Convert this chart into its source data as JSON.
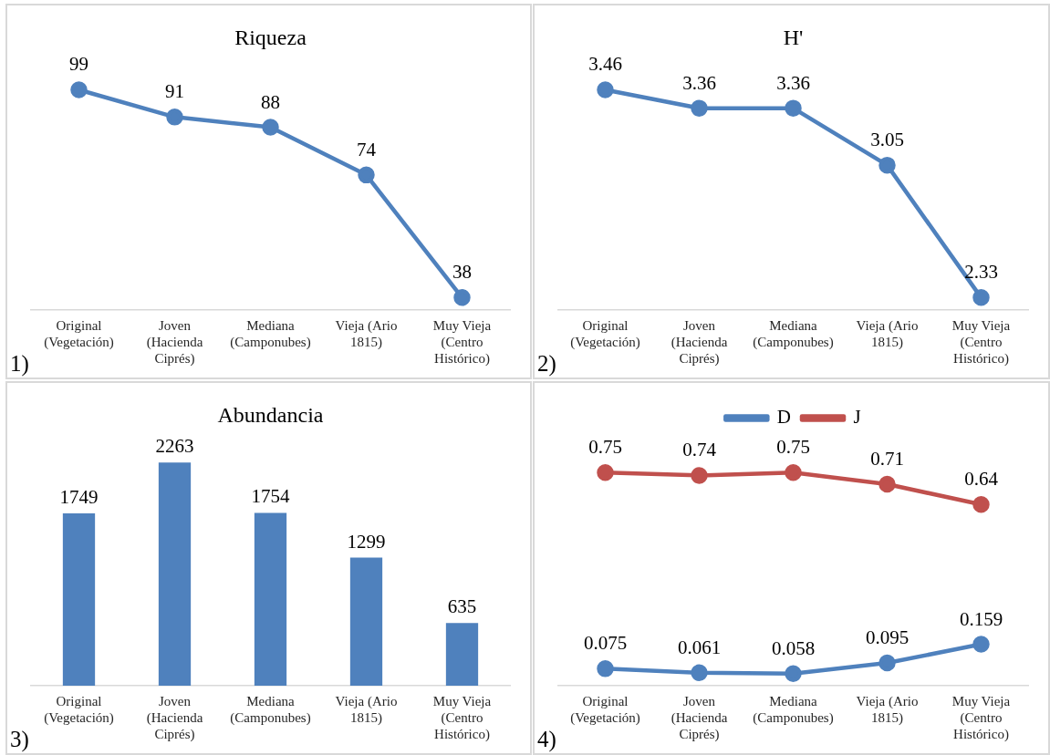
{
  "chart_data": [
    {
      "type": "line",
      "title": "Riqueza",
      "categories": [
        "Original (Vegetación)",
        "Joven (Hacienda Ciprés)",
        "Mediana (Camponubes)",
        "Vieja (Ario 1815)",
        "Muy Vieja (Centro Histórico)"
      ],
      "series": [
        {
          "color": "#4f81bd",
          "values": [
            99,
            91,
            88,
            74,
            38
          ]
        }
      ],
      "marker": "circle",
      "data_labels": true,
      "annotations": [
        "1)"
      ]
    },
    {
      "type": "line",
      "title": "H'",
      "categories": [
        "Original (Vegetación)",
        "Joven (Hacienda Ciprés)",
        "Mediana (Camponubes)",
        "Vieja (Ario 1815)",
        "Muy Vieja (Centro Histórico)"
      ],
      "series": [
        {
          "color": "#4f81bd",
          "values": [
            3.46,
            3.36,
            3.36,
            3.05,
            2.33
          ]
        }
      ],
      "marker": "circle",
      "data_labels": true,
      "annotations": [
        "2)"
      ]
    },
    {
      "type": "bar",
      "title": "Abundancia",
      "categories": [
        "Original (Vegetación)",
        "Joven (Hacienda Ciprés)",
        "Mediana (Camponubes)",
        "Vieja (Ario 1815)",
        "Muy Vieja (Centro Histórico)"
      ],
      "series": [
        {
          "color": "#4f81bd",
          "values": [
            1749,
            2263,
            1754,
            1299,
            635
          ]
        }
      ],
      "data_labels": true,
      "annotations": [
        "3)"
      ]
    },
    {
      "type": "line",
      "categories": [
        "Original (Vegetación)",
        "Joven (Hacienda Ciprés)",
        "Mediana (Camponubes)",
        "Vieja (Ario 1815)",
        "Muy Vieja (Centro Histórico)"
      ],
      "series": [
        {
          "name": "D",
          "color": "#4f81bd",
          "values": [
            0.075,
            0.061,
            0.058,
            0.095,
            0.159
          ]
        },
        {
          "name": "J",
          "color": "#c0504d",
          "values": [
            0.75,
            0.74,
            0.75,
            0.71,
            0.64
          ]
        }
      ],
      "marker": "circle",
      "legend": "top",
      "data_labels": true,
      "annotations": [
        "4)"
      ]
    }
  ]
}
